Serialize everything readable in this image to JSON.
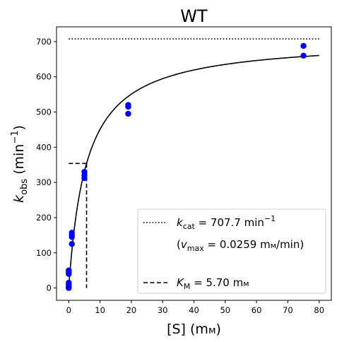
{
  "chart_data": {
    "type": "scatter",
    "title": "WT",
    "xlabel": "[S] (mм)",
    "xlabel_parts": {
      "pre": "[S] (m",
      "unit": "м",
      "post": ")"
    },
    "ylabel_parts": {
      "k": "k",
      "sub": "obs",
      "open": " (min",
      "sup": "−1",
      "close": ")"
    },
    "xlim": [
      -3.9,
      83.9
    ],
    "ylim": [
      -35,
      742
    ],
    "xticks": [
      0,
      10,
      20,
      30,
      40,
      50,
      60,
      70,
      80
    ],
    "yticks": [
      0,
      100,
      200,
      300,
      400,
      500,
      600,
      700
    ],
    "grid": false,
    "legend_position": "lower right",
    "kcat": 707.7,
    "KM": 5.7,
    "points": {
      "color": "#0000ff",
      "x": [
        0,
        0,
        0,
        0,
        0,
        0,
        0,
        0,
        1,
        1,
        1,
        1,
        5,
        5,
        5,
        19,
        19,
        19,
        75,
        75
      ],
      "y": [
        0,
        5,
        10,
        15,
        40,
        45,
        50,
        0,
        125,
        145,
        150,
        157,
        312,
        320,
        330,
        495,
        515,
        520,
        660,
        688
      ]
    },
    "fit_curve": {
      "type": "michaelis-menten",
      "color": "#000000",
      "x_range": [
        0,
        80
      ]
    },
    "kcat_line": {
      "style": "dotted",
      "color": "#000000",
      "x_range": [
        0,
        80
      ]
    },
    "km_lines": {
      "style": "dashed",
      "color": "#000000",
      "half_max_y": 353.85
    },
    "legend": {
      "kcat": {
        "k": "k",
        "sub": "cat",
        "eq": " = 707.7 min",
        "sup": "−1"
      },
      "vmax": {
        "open": "(",
        "v": "v",
        "sub": "max",
        "eq": " = 0.0259 m",
        "unit": "м",
        "close": "/min)"
      },
      "km": {
        "k": "K",
        "sub": "M",
        "eq": " = 5.70 m",
        "unit": "м"
      }
    }
  }
}
